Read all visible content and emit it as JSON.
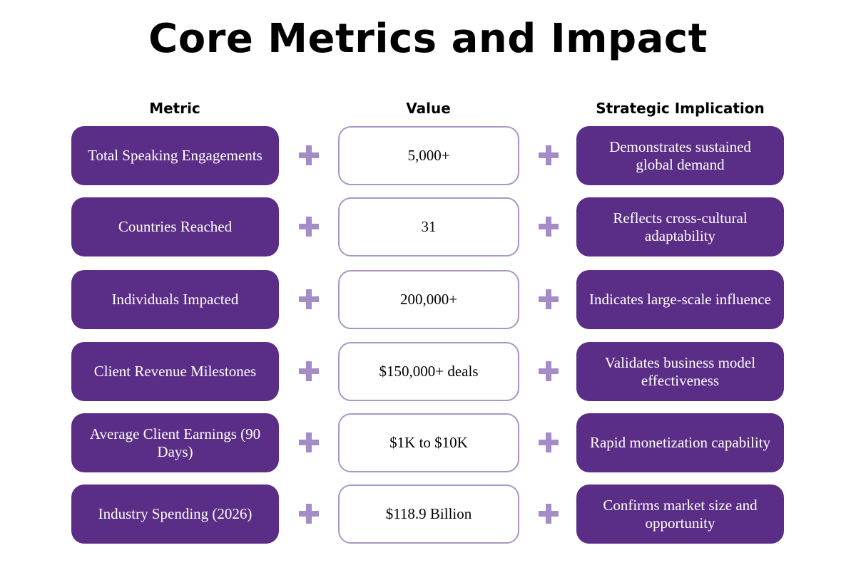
{
  "title": "Core Metrics and Impact",
  "headers": {
    "metric": "Metric",
    "value": "Value",
    "implication": "Strategic Implication"
  },
  "rows": [
    {
      "metric": "Total Speaking Engagements",
      "value": "5,000+",
      "implication": "Demonstrates sustained global demand"
    },
    {
      "metric": "Countries Reached",
      "value": "31",
      "implication": "Reflects cross-cultural adaptability"
    },
    {
      "metric": "Individuals Impacted",
      "value": "200,000+",
      "implication": "Indicates large-scale influence"
    },
    {
      "metric": "Client Revenue Milestones",
      "value": "$150,000+ deals",
      "implication": "Validates business model effectiveness"
    },
    {
      "metric": "Average Client Earnings (90 Days)",
      "value": "$1K to $10K",
      "implication": "Rapid monetization capability"
    },
    {
      "metric": "Industry Spending (2026)",
      "value": "$118.9 Billion",
      "implication": "Confirms market size and opportunity"
    }
  ],
  "colors": {
    "accent_purple": "#5a2d86",
    "plus_color": "#a48cc6",
    "value_border": "#a996c4"
  },
  "icons": {
    "connector": "plus-icon"
  }
}
